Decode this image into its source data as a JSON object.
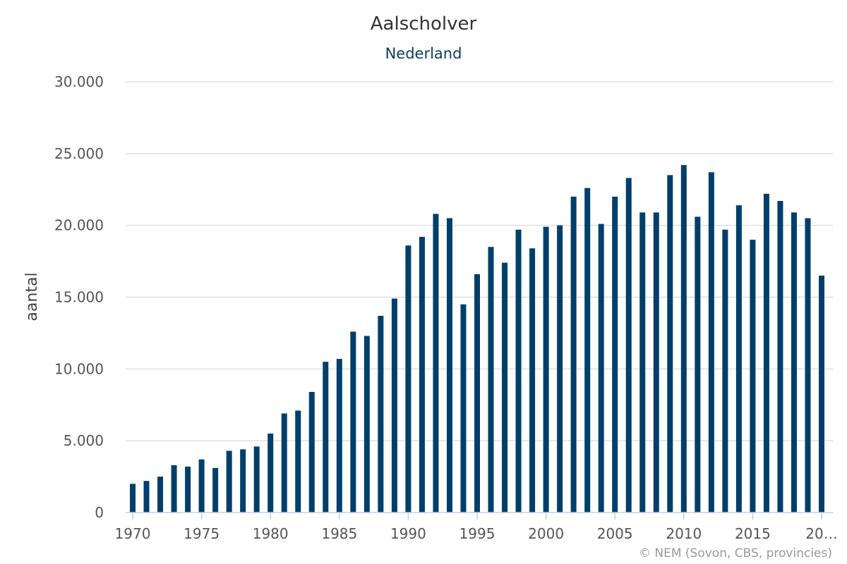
{
  "chart_data": {
    "type": "bar",
    "title": "Aalscholver",
    "subtitle": "Nederland",
    "xlabel": "",
    "ylabel": "aantal",
    "ylim": [
      0,
      30000
    ],
    "yticks": [
      0,
      5000,
      10000,
      15000,
      20000,
      25000,
      30000
    ],
    "ytick_labels": [
      "0",
      "5.000",
      "10.000",
      "15.000",
      "20.000",
      "25.000",
      "30.000"
    ],
    "xtick_labels": [
      "1970",
      "1975",
      "1980",
      "1985",
      "1990",
      "1995",
      "2000",
      "2005",
      "2010",
      "2015",
      "20…"
    ],
    "grid": true,
    "legend": "none",
    "bar_color": "#003f6b",
    "categories": [
      1970,
      1971,
      1972,
      1973,
      1974,
      1975,
      1976,
      1977,
      1978,
      1979,
      1980,
      1981,
      1982,
      1983,
      1984,
      1985,
      1986,
      1987,
      1988,
      1989,
      1990,
      1991,
      1992,
      1993,
      1994,
      1995,
      1996,
      1997,
      1998,
      1999,
      2000,
      2001,
      2002,
      2003,
      2004,
      2005,
      2006,
      2007,
      2008,
      2009,
      2010,
      2011,
      2012,
      2013,
      2014,
      2015,
      2016,
      2017,
      2018,
      2019,
      2020
    ],
    "values": [
      2000,
      2200,
      2500,
      3300,
      3200,
      3700,
      3100,
      4300,
      4400,
      4600,
      5500,
      6900,
      7100,
      8400,
      10500,
      10700,
      12600,
      12300,
      13700,
      14900,
      18600,
      19200,
      20800,
      20500,
      14500,
      16600,
      18500,
      17400,
      19700,
      18400,
      19900,
      20000,
      22000,
      22600,
      20100,
      22000,
      23300,
      20900,
      20900,
      23500,
      24200,
      20600,
      23700,
      19700,
      21400,
      19000,
      22200,
      21700,
      20900,
      20500,
      16500
    ]
  },
  "credits": "© NEM (Sovon, CBS, provincies)"
}
